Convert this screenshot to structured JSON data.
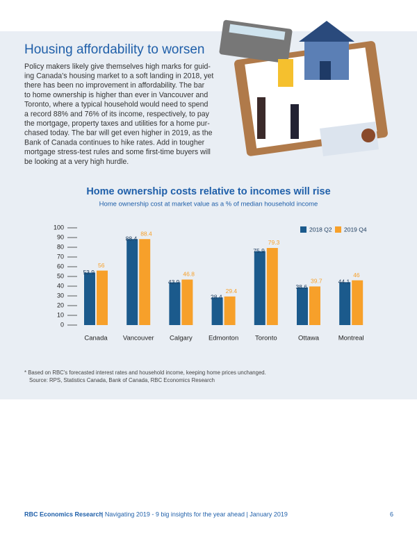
{
  "header": {
    "title": "Housing affordability to worsen"
  },
  "body": {
    "lines": [
      "Policy makers likely give themselves high marks for guid-",
      "ing Canada's housing market to a soft landing in 2018, yet",
      "there has been no improvement in affordability. The bar",
      "to home ownership is higher than ever in Vancouver and",
      "Toronto, where a typical household would need to spend",
      "a record 88% and 76% of its income, respectively, to pay",
      "the mortgage, property taxes and utilities for a home pur-",
      "chased today. The bar will get even higher in 2019, as the",
      "Bank of Canada continues to hike rates. Add in tougher",
      "mortgage stress-test rules and some first-time buyers will",
      "be looking at a very high hurdle."
    ]
  },
  "chart_data": {
    "type": "bar",
    "title": "Home ownership costs relative to incomes will rise",
    "subtitle": "Home ownership cost at market value as a % of median household income",
    "categories": [
      "Canada",
      "Vancouver",
      "Calgary",
      "Edmonton",
      "Toronto",
      "Ottawa",
      "Montreal"
    ],
    "series": [
      {
        "name": "2018 Q2",
        "color": "#1b5a8c",
        "values": [
          53.9,
          88.4,
          43.9,
          28.4,
          75.9,
          38.6,
          44.1
        ]
      },
      {
        "name": "2019 Q4",
        "color": "#f7a02a",
        "values": [
          56,
          88.4,
          46.8,
          29.4,
          79.3,
          39.7,
          46
        ]
      }
    ],
    "ylim": [
      0,
      100
    ],
    "yticks": [
      0,
      10,
      20,
      30,
      40,
      50,
      60,
      70,
      80,
      90,
      100
    ],
    "legend": "top-right",
    "notes": [
      "* Based on RBC's forecasted interest rates and household income, keeping home prices unchanged.",
      "Source: RPS, Statistics Canada, Bank of Canada, RBC Economics Research"
    ]
  },
  "footer": {
    "org": "RBC Economics Research",
    "text": "|  Navigating 2019 - 9 big insights for the year ahead  |  January 2019",
    "page": "6"
  }
}
